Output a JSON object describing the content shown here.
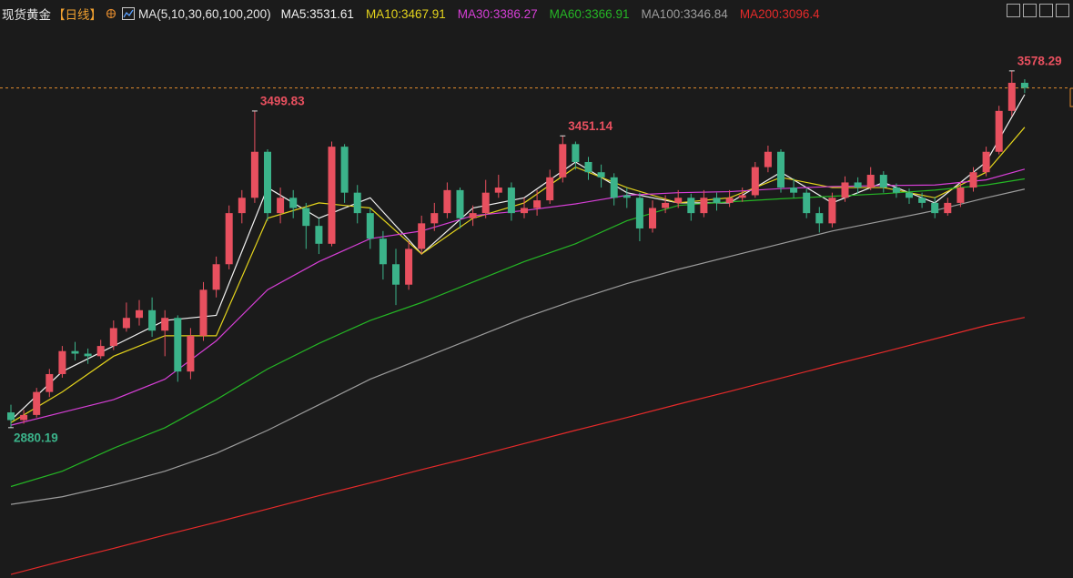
{
  "chart_data": {
    "type": "candlestick",
    "title": "现货黄金",
    "period": "【日线】",
    "ma_label": "MA(5,10,30,60,100,200)",
    "ylim": [
      2586,
      3717
    ],
    "up_color": "#e8505f",
    "down_color": "#3bb38a",
    "last_line_color": "#e08a2e",
    "candles": [
      [
        2910,
        2925,
        2880.19,
        2895
      ],
      [
        2895,
        2915,
        2888,
        2905
      ],
      [
        2905,
        2958,
        2900,
        2950
      ],
      [
        2950,
        2995,
        2940,
        2985
      ],
      [
        2985,
        3040,
        2978,
        3030
      ],
      [
        3030,
        3048,
        3012,
        3025
      ],
      [
        3025,
        3035,
        3005,
        3020
      ],
      [
        3020,
        3052,
        3015,
        3040
      ],
      [
        3040,
        3090,
        3032,
        3075
      ],
      [
        3075,
        3125,
        3068,
        3095
      ],
      [
        3095,
        3130,
        3080,
        3110
      ],
      [
        3110,
        3135,
        3058,
        3070
      ],
      [
        3070,
        3110,
        3020,
        3095
      ],
      [
        3095,
        3100,
        2970,
        2990
      ],
      [
        2990,
        3075,
        2975,
        3060
      ],
      [
        3060,
        3165,
        3050,
        3150
      ],
      [
        3150,
        3215,
        3135,
        3200
      ],
      [
        3200,
        3315,
        3190,
        3300
      ],
      [
        3300,
        3345,
        3280,
        3330
      ],
      [
        3330,
        3499.83,
        3320,
        3420
      ],
      [
        3420,
        3425,
        3285,
        3300
      ],
      [
        3300,
        3350,
        3280,
        3330
      ],
      [
        3330,
        3345,
        3290,
        3310
      ],
      [
        3310,
        3320,
        3230,
        3275
      ],
      [
        3275,
        3290,
        3220,
        3240
      ],
      [
        3240,
        3440,
        3235,
        3430
      ],
      [
        3430,
        3435,
        3320,
        3340
      ],
      [
        3340,
        3355,
        3280,
        3300
      ],
      [
        3300,
        3310,
        3230,
        3250
      ],
      [
        3250,
        3265,
        3170,
        3200
      ],
      [
        3200,
        3230,
        3120,
        3160
      ],
      [
        3160,
        3245,
        3150,
        3230
      ],
      [
        3230,
        3295,
        3220,
        3280
      ],
      [
        3280,
        3320,
        3265,
        3300
      ],
      [
        3300,
        3360,
        3290,
        3345
      ],
      [
        3345,
        3350,
        3270,
        3290
      ],
      [
        3290,
        3315,
        3275,
        3300
      ],
      [
        3300,
        3365,
        3290,
        3340
      ],
      [
        3340,
        3375,
        3330,
        3350
      ],
      [
        3350,
        3360,
        3285,
        3300
      ],
      [
        3300,
        3330,
        3290,
        3310
      ],
      [
        3310,
        3345,
        3295,
        3325
      ],
      [
        3325,
        3385,
        3318,
        3370
      ],
      [
        3370,
        3451.14,
        3360,
        3435
      ],
      [
        3435,
        3440,
        3385,
        3400
      ],
      [
        3400,
        3410,
        3365,
        3380
      ],
      [
        3380,
        3395,
        3350,
        3370
      ],
      [
        3370,
        3378,
        3315,
        3330
      ],
      [
        3335,
        3350,
        3310,
        3330
      ],
      [
        3330,
        3340,
        3245,
        3270
      ],
      [
        3270,
        3325,
        3262,
        3310
      ],
      [
        3310,
        3335,
        3300,
        3320
      ],
      [
        3320,
        3345,
        3310,
        3330
      ],
      [
        3330,
        3338,
        3285,
        3300
      ],
      [
        3300,
        3345,
        3292,
        3330
      ],
      [
        3330,
        3340,
        3305,
        3320
      ],
      [
        3320,
        3345,
        3312,
        3330
      ],
      [
        3330,
        3350,
        3322,
        3335
      ],
      [
        3335,
        3400,
        3330,
        3390
      ],
      [
        3390,
        3432,
        3380,
        3420
      ],
      [
        3420,
        3425,
        3340,
        3350
      ],
      [
        3350,
        3368,
        3330,
        3340
      ],
      [
        3340,
        3348,
        3290,
        3300
      ],
      [
        3300,
        3312,
        3262,
        3280
      ],
      [
        3280,
        3340,
        3272,
        3330
      ],
      [
        3330,
        3372,
        3322,
        3360
      ],
      [
        3360,
        3370,
        3338,
        3350
      ],
      [
        3350,
        3390,
        3345,
        3375
      ],
      [
        3375,
        3382,
        3340,
        3350
      ],
      [
        3350,
        3358,
        3330,
        3340
      ],
      [
        3340,
        3348,
        3318,
        3330
      ],
      [
        3330,
        3340,
        3310,
        3320
      ],
      [
        3320,
        3332,
        3290,
        3300
      ],
      [
        3300,
        3330,
        3295,
        3320
      ],
      [
        3320,
        3362,
        3312,
        3350
      ],
      [
        3350,
        3390,
        3342,
        3380
      ],
      [
        3380,
        3430,
        3372,
        3420
      ],
      [
        3420,
        3510,
        3415,
        3500
      ],
      [
        3500,
        3578.29,
        3490,
        3555
      ],
      [
        3555,
        3562,
        3535,
        3545
      ]
    ],
    "marked_points": [
      {
        "candle": 19,
        "at": "high"
      },
      {
        "candle": 43,
        "at": "high"
      },
      {
        "candle": 78,
        "at": "high"
      },
      {
        "candle": 0,
        "at": "low"
      }
    ],
    "x": [
      0,
      4,
      8,
      12,
      16,
      20,
      24,
      28,
      32,
      36,
      40,
      44,
      48,
      52,
      56,
      60,
      64,
      68,
      72,
      76,
      79
    ],
    "series": [
      {
        "name": "MA5:",
        "last": 3531.61,
        "color": "#f2f2f2",
        "values": [
          2895,
          2990,
          3040,
          3090,
          3100,
          3350,
          3290,
          3330,
          3220,
          3310,
          3330,
          3400,
          3340,
          3320,
          3320,
          3380,
          3320,
          3360,
          3320,
          3400,
          3532
        ]
      },
      {
        "name": "MA10:",
        "last": 3467.91,
        "color": "#e3d31c",
        "values": [
          2890,
          2950,
          3020,
          3060,
          3060,
          3290,
          3320,
          3310,
          3220,
          3290,
          3320,
          3390,
          3350,
          3320,
          3330,
          3370,
          3350,
          3350,
          3330,
          3380,
          3468
        ]
      },
      {
        "name": "MA30:",
        "last": 3386.27,
        "color": "#d63fd6",
        "values": [
          2885,
          2910,
          2935,
          2975,
          3050,
          3150,
          3205,
          3250,
          3265,
          3295,
          3305,
          3318,
          3335,
          3340,
          3342,
          3348,
          3352,
          3354,
          3355,
          3365,
          3386
        ]
      },
      {
        "name": "MA60:",
        "last": 3366.91,
        "color": "#25b625",
        "values": [
          2765,
          2795,
          2840,
          2880,
          2935,
          2995,
          3045,
          3090,
          3125,
          3165,
          3205,
          3240,
          3285,
          3315,
          3322,
          3328,
          3333,
          3338,
          3345,
          3355,
          3367
        ]
      },
      {
        "name": "MA100:",
        "last": 3346.84,
        "color": "#9c9c9c",
        "values": [
          2730,
          2745,
          2768,
          2795,
          2830,
          2875,
          2925,
          2975,
          3015,
          3055,
          3095,
          3130,
          3162,
          3190,
          3215,
          3240,
          3265,
          3285,
          3305,
          3330,
          3347
        ]
      },
      {
        "name": "MA200:",
        "last": 3096.4,
        "color": "#e52a2a",
        "values": [
          2593,
          2619,
          2644,
          2670,
          2695,
          2721,
          2747,
          2772,
          2798,
          2823,
          2849,
          2875,
          2900,
          2926,
          2951,
          2977,
          3003,
          3028,
          3054,
          3080,
          3096
        ]
      }
    ]
  }
}
